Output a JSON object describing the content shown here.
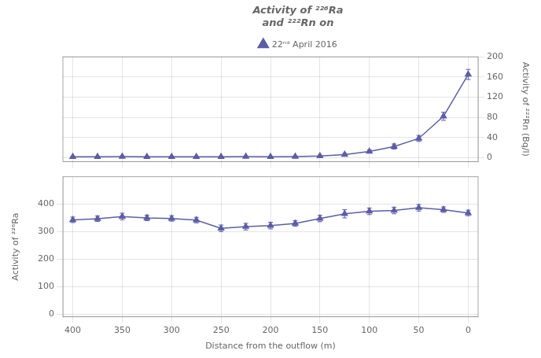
{
  "chart_data": [
    {
      "type": "line",
      "title": "Activity of ²²⁶Ra\nand ²²²Rn on",
      "x": [
        400,
        375,
        350,
        325,
        300,
        275,
        250,
        225,
        200,
        175,
        150,
        125,
        100,
        75,
        50,
        25,
        0
      ],
      "series": [
        {
          "name": "22ⁿᵈ April 2016",
          "color": "#5b5ea6",
          "marker": "triangle",
          "values": [
            1.5,
            1.5,
            2.0,
            1.5,
            1.5,
            1.5,
            1.5,
            2.0,
            1.5,
            2.0,
            3.0,
            6.0,
            12,
            22,
            38,
            82,
            165
          ],
          "yerr": [
            1.0,
            1.0,
            1.0,
            1.0,
            1.0,
            1.0,
            1.0,
            1.0,
            1.0,
            1.0,
            1.5,
            2.0,
            3,
            5,
            6,
            8,
            10
          ]
        }
      ],
      "ylabel": "Activity of ²²²Rn (Bq/l)",
      "xlim": [
        410,
        -10
      ],
      "xticks": [
        400,
        350,
        300,
        250,
        200,
        150,
        100,
        50,
        0
      ],
      "ylim": [
        -8,
        200
      ],
      "yticks": [
        0,
        40,
        80,
        120,
        160,
        200
      ],
      "legend": "top",
      "grid": true,
      "tick_labels": "y"
    },
    {
      "type": "line",
      "x": [
        400,
        375,
        350,
        325,
        300,
        275,
        250,
        225,
        200,
        175,
        150,
        125,
        100,
        75,
        50,
        25,
        0
      ],
      "series": [
        {
          "color": "#5b5ea6",
          "marker": "triangle",
          "values": [
            343,
            347,
            355,
            350,
            348,
            342,
            312,
            318,
            322,
            330,
            348,
            365,
            374,
            377,
            387,
            380,
            368
          ],
          "yerr": [
            10,
            10,
            12,
            10,
            10,
            10,
            12,
            12,
            12,
            10,
            12,
            15,
            12,
            12,
            12,
            10,
            10
          ]
        }
      ],
      "xlabel": "Distance from the outflow (m)",
      "ylabel": "Activity of ²²⁶Ra",
      "xlim": [
        410,
        -10
      ],
      "xticks": [
        400,
        350,
        300,
        250,
        200,
        150,
        100,
        50,
        0
      ],
      "ylim": [
        -10,
        500
      ],
      "yticks": [
        0,
        100,
        200,
        300,
        400
      ],
      "grid": true
    }
  ]
}
